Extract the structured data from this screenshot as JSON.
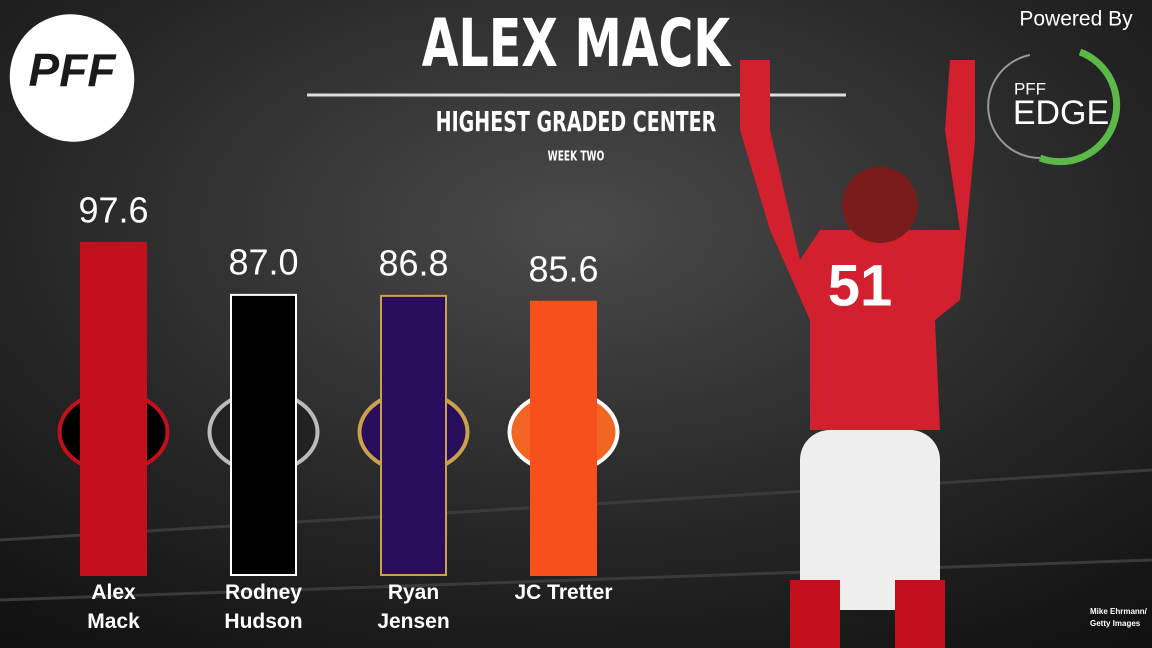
{
  "chart_data": {
    "type": "bar",
    "title": "ALEX MACK",
    "subtitle": "HIGHEST GRADED CENTER",
    "period": "WEEK TWO",
    "categories": [
      "Alex Mack",
      "Rodney Hudson",
      "Ryan Jensen",
      "JC Tretter"
    ],
    "values": [
      97.6,
      87.0,
      86.8,
      85.6
    ],
    "value_labels": [
      "97.6",
      "87.0",
      "86.8",
      "85.6"
    ],
    "colors": [
      "#c4101c",
      "#000000",
      "#2a0e5e",
      "#f7501c"
    ],
    "edgecolors": [
      "#c4101c",
      "#ffffff",
      "#c9a24a",
      "#f7501c"
    ],
    "ylim": [
      30,
      100
    ]
  },
  "branding": {
    "logo": "PFF",
    "powered_by": "Powered By",
    "edge_top": "PFF",
    "edge_bottom": "EDGE"
  },
  "credit": "Mike Ehrmann/ Getty Images"
}
